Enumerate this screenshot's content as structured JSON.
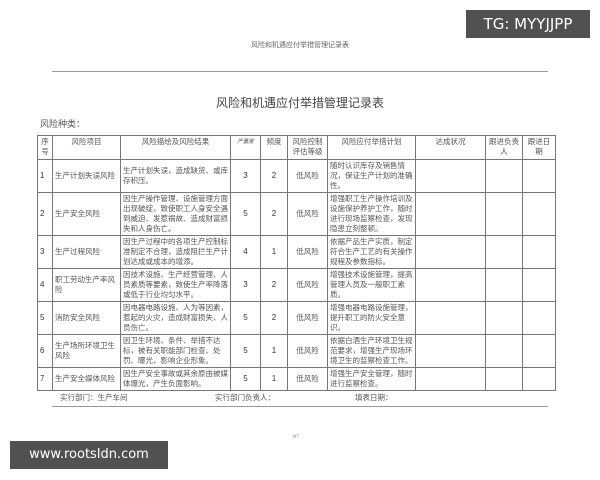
{
  "header": "风险和机遇应付举措管理记录表",
  "title": "风险和机遇应付举措管理记录表",
  "kind_label": "风险种类：",
  "columns": [
    "序号",
    "风险项目",
    "风险描绘及风险结果",
    "严重度",
    "频度",
    "风险控制评估等级",
    "风险应付举措计划",
    "达成状况",
    "跟进负责人",
    "跟进日期"
  ],
  "rows": [
    {
      "no": "1",
      "item": "生产计划失误风险",
      "desc": "生产计划失误，造成缺货、或库存积压。",
      "sev": "3",
      "freq": "2",
      "level": "低风险",
      "plan": "随时认识库存及销售情况，保证生产计划的准确性。"
    },
    {
      "no": "2",
      "item": "生产安全风险",
      "desc": "因生产操作管理、设施管理方面出现破绽，致使职工人身安全遇到威迫、发惹祸故、造成财富损失和人身伤亡。",
      "sev": "5",
      "freq": "2",
      "level": "低风险",
      "plan": "增强职工生产操作培训及设施保护养护工作，随时进行现场监察检查，发现隐患立刻整顿。"
    },
    {
      "no": "3",
      "item": "生产过程风险",
      "desc": "因生产过程中的各项生产控制标准制定不合理，造成阻拦生产计划达成或成本的增添。",
      "sev": "4",
      "freq": "1",
      "level": "低风险",
      "plan": "依据产品生产实质，制定符合生产工艺的有关操作规程及参数指标。"
    },
    {
      "no": "4",
      "item": "职工劳动生产率风险",
      "desc": "因技术设施、生产经营管理、人员素质等要素，致使生产率降落或低于行业均匀水平。",
      "sev": "3",
      "freq": "2",
      "level": "低风险",
      "plan": "增强技术设施管理，提高管理人员及一般职工素质。"
    },
    {
      "no": "5",
      "item": "消防安全风险",
      "desc": "因电器电路设施、人为等因素，惹起的火灾，造成财富损失、人员伤亡。",
      "sev": "5",
      "freq": "2",
      "level": "低风险",
      "plan": "增强电器电路设施管理，提升职工的防火安全意识。"
    },
    {
      "no": "6",
      "item": "生产场所环境卫生风险",
      "desc": "因卫生环境、条件、举措不达标，被有关职能部门检查、处罚、曝光，影响企业形象。",
      "sev": "5",
      "freq": "1",
      "level": "低风险",
      "plan": "依据白酒生产环境卫生规范要求，增强生产现场环境卫生的监察检查工作。"
    },
    {
      "no": "7",
      "item": "生产安全媒体风险",
      "desc": "因生产安全事故或其余原由被媒体爆光，产生负面影响。",
      "sev": "5",
      "freq": "1",
      "level": "低风险",
      "plan": "增强生产安全管理，随时进行监察检查。"
    }
  ],
  "footer": {
    "dept": "实行部门：生产车间",
    "head": "实行部门负责人：",
    "date": "填表日期："
  },
  "page_number": "97",
  "watermarks": {
    "top": "TG: MYYJJPP",
    "bottom": "www.rootsldn.com"
  }
}
